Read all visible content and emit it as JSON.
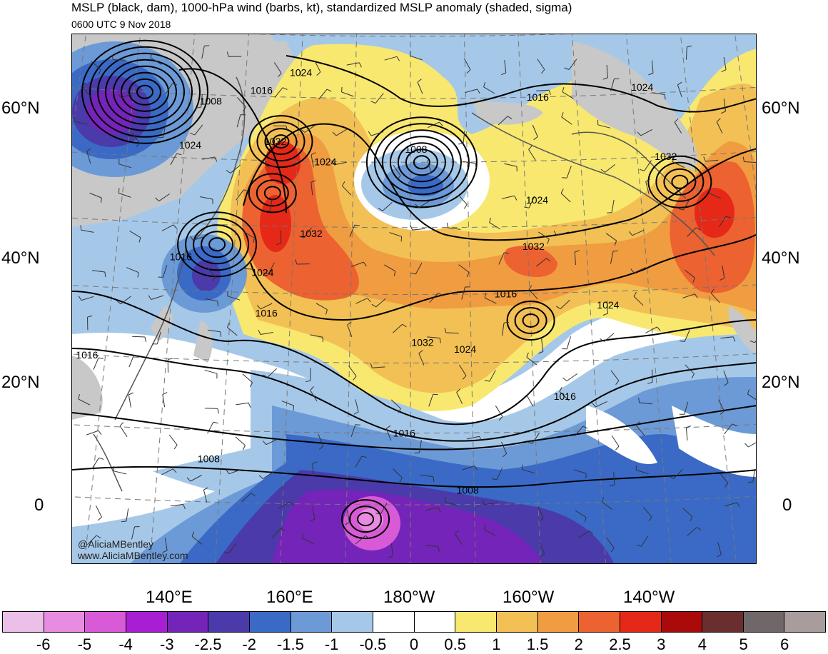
{
  "header": {
    "title": "MSLP (black, dam), 1000-hPa wind (barbs, kt), standardized MSLP anomaly (shaded, sigma)",
    "valid_time": "0600 UTC 9 Nov 2018"
  },
  "map": {
    "lat_labels": [
      "60°N",
      "40°N",
      "20°N",
      "0"
    ],
    "lon_labels": [
      "140°E",
      "160°E",
      "180°W",
      "160°W",
      "140°W"
    ],
    "isobar_labels": [
      {
        "text": "1016",
        "lat": 61,
        "lon": 153
      },
      {
        "text": "1024",
        "lat": 64,
        "lon": 160
      },
      {
        "text": "1008",
        "lat": 59,
        "lon": 144
      },
      {
        "text": "1016",
        "lat": 60,
        "lon": -157
      },
      {
        "text": "1024",
        "lat": 61,
        "lon": -138
      },
      {
        "text": "1032",
        "lat": 53,
        "lon": 156
      },
      {
        "text": "1024",
        "lat": 52,
        "lon": 141
      },
      {
        "text": "1024",
        "lat": 50,
        "lon": 165
      },
      {
        "text": "1008",
        "lat": 52,
        "lon": -179
      },
      {
        "text": "1032",
        "lat": 50,
        "lon": -135
      },
      {
        "text": "1024",
        "lat": 44,
        "lon": -158
      },
      {
        "text": "1032",
        "lat": 39,
        "lon": 163
      },
      {
        "text": "1032",
        "lat": 37,
        "lon": -159
      },
      {
        "text": "1016",
        "lat": 35,
        "lon": 141
      },
      {
        "text": "1024",
        "lat": 33,
        "lon": 155
      },
      {
        "text": "1016",
        "lat": 30,
        "lon": -164
      },
      {
        "text": "1024",
        "lat": 28,
        "lon": -147
      },
      {
        "text": "1016",
        "lat": 27,
        "lon": 156
      },
      {
        "text": "1032",
        "lat": 23,
        "lon": -178
      },
      {
        "text": "1024",
        "lat": 22,
        "lon": -171
      },
      {
        "text": "1016",
        "lat": 20,
        "lon": 127
      },
      {
        "text": "1016",
        "lat": 15,
        "lon": -155
      },
      {
        "text": "1016",
        "lat": 10,
        "lon": 179
      },
      {
        "text": "1008",
        "lat": 6,
        "lon": 148
      },
      {
        "text": "1008",
        "lat": 2,
        "lon": -171
      }
    ],
    "pressure_centers": [
      {
        "kind": "low",
        "lat": 60,
        "lon": 132,
        "rings": 8
      },
      {
        "kind": "low",
        "lat": 50,
        "lon": -178,
        "rings": 7
      },
      {
        "kind": "low",
        "lat": 37,
        "lon": 147,
        "rings": 5
      },
      {
        "kind": "low",
        "lat": 26,
        "lon": -160,
        "rings": 3
      },
      {
        "kind": "low",
        "lat": -2,
        "lon": 173,
        "rings": 3
      },
      {
        "kind": "high",
        "lat": 53,
        "lon": 157,
        "rings": 4
      },
      {
        "kind": "high",
        "lat": 45,
        "lon": 156,
        "rings": 3
      },
      {
        "kind": "high",
        "lat": 46,
        "lon": -133,
        "rings": 4
      }
    ],
    "anomaly_regions": [
      {
        "sigma_bin": "1 to 0.5",
        "lat": 55,
        "lon": 175,
        "rx": 2.2,
        "ry": 1.0
      },
      {
        "sigma_bin": "1 to 0.5",
        "lat": 40,
        "lon": 175,
        "rx": 2.4,
        "ry": 1.4
      },
      {
        "sigma_bin": "1 to 0.5",
        "lat": 58,
        "lon": -150,
        "rx": 1.4,
        "ry": 0.8
      }
    ],
    "credits": [
      "@AliciaMBentley",
      "www.AliciaMBentley.com"
    ]
  },
  "colorbar": {
    "colors": [
      "#ecbfe8",
      "#e88ce2",
      "#d85ad6",
      "#a81ed2",
      "#7424b8",
      "#4a3aaa",
      "#3a6ac6",
      "#6c9ad6",
      "#a6c8e8",
      "#ffffff",
      "#ffffff",
      "#f8e870",
      "#f2c054",
      "#f09c40",
      "#ec6230",
      "#e62818",
      "#aa0a0a",
      "#6a2e2e",
      "#706868",
      "#a89c9c"
    ],
    "ticks": [
      "-6",
      "-5",
      "-4",
      "-3",
      "-2.5",
      "-2",
      "-1.5",
      "-1",
      "-0.5",
      "0",
      "0.5",
      "1",
      "1.5",
      "2",
      "2.5",
      "3",
      "4",
      "5",
      "6"
    ]
  }
}
